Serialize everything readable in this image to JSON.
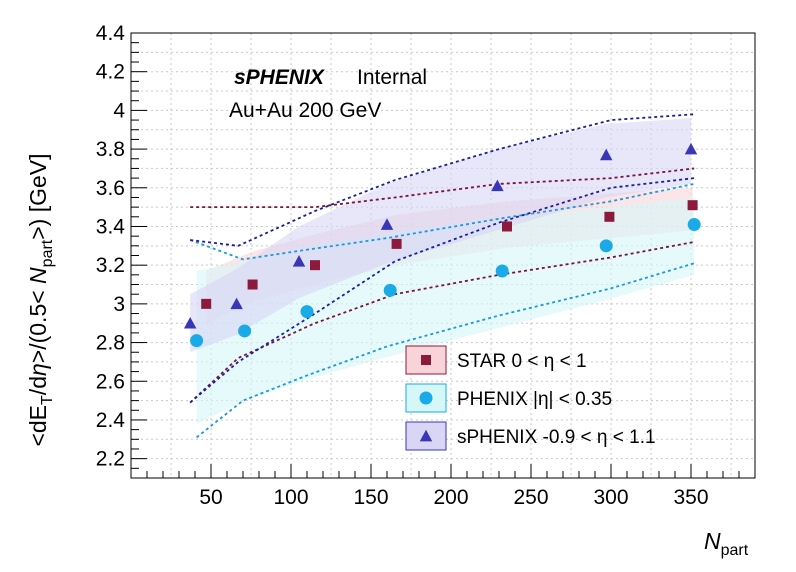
{
  "chart_data": {
    "type": "scatter",
    "title": "",
    "xlabel_main": "N",
    "xlabel_sub": "part",
    "ylabel_parts": [
      "<dE",
      "T",
      "/d",
      "η",
      ">/(0.5< ",
      "N",
      "part",
      ">) [GeV]"
    ],
    "xlim": [
      0,
      390
    ],
    "ylim": [
      2.1,
      4.4
    ],
    "x_ticks": [
      50,
      100,
      150,
      200,
      250,
      300,
      350
    ],
    "y_ticks": [
      2.2,
      2.4,
      2.6,
      2.8,
      3,
      3.2,
      3.4,
      3.6,
      3.8,
      4,
      4.2,
      4.4
    ],
    "y_tick_labels": [
      "2.2",
      "2.4",
      "2.6",
      "2.8",
      "3",
      "3.2",
      "3.4",
      "3.6",
      "3.8",
      "4",
      "4.2",
      "4.4"
    ],
    "grid": true,
    "annotations": {
      "experiment": "sPHENIX",
      "status": "Internal",
      "system": "Au+Au 200 GeV"
    },
    "legend_position": "bottom-right",
    "series": [
      {
        "name": "STAR 0 < η < 1",
        "marker": "square",
        "color": "#8b1a3c",
        "band_color": "#f8d4d8",
        "line_color": "#7a1438",
        "x": [
          47,
          76,
          115,
          166,
          235,
          299,
          351
        ],
        "y": [
          3.0,
          3.1,
          3.2,
          3.31,
          3.4,
          3.45,
          3.51
        ],
        "band_upper": [
          3.17,
          3.27,
          3.36,
          3.46,
          3.53,
          3.57,
          3.6
        ],
        "band_lower": [
          2.9,
          3.01,
          3.1,
          3.2,
          3.29,
          3.34,
          3.38
        ],
        "sys_upper_x": [
          37,
          67,
          115,
          165,
          230,
          300,
          352
        ],
        "sys_upper_y": [
          3.5,
          3.5,
          3.5,
          3.55,
          3.62,
          3.65,
          3.7
        ],
        "sys_lower_x": [
          37,
          67,
          115,
          165,
          230,
          300,
          352
        ],
        "sys_lower_y": [
          2.49,
          2.72,
          2.9,
          3.05,
          3.15,
          3.24,
          3.32
        ]
      },
      {
        "name": "PHENIX |η| < 0.35",
        "marker": "circle",
        "color": "#1aaae8",
        "band_color": "#d5f7f8",
        "line_color": "#1a9ad8",
        "x": [
          41,
          71,
          110,
          162,
          232,
          297,
          352
        ],
        "y": [
          2.81,
          2.86,
          2.96,
          3.07,
          3.17,
          3.3,
          3.41
        ],
        "band_upper": [
          3.17,
          3.22,
          3.3,
          3.38,
          3.44,
          3.5,
          3.55
        ],
        "band_lower": [
          2.38,
          2.5,
          2.61,
          2.73,
          2.88,
          3.02,
          3.15
        ],
        "sys_upper_x": [
          37,
          70,
          110,
          160,
          230,
          300,
          352
        ],
        "sys_upper_y": [
          3.33,
          3.23,
          3.28,
          3.34,
          3.44,
          3.53,
          3.62
        ],
        "sys_lower_x": [
          41,
          70,
          110,
          160,
          230,
          300,
          352
        ],
        "sys_lower_y": [
          2.31,
          2.5,
          2.63,
          2.78,
          2.94,
          3.08,
          3.21
        ]
      },
      {
        "name": "sPHENIX -0.9 < η < 1.1",
        "marker": "triangle",
        "color": "#3a36b8",
        "band_color": "#d9d6f5",
        "line_color": "#1e1e9a",
        "x": [
          37,
          66,
          105,
          160,
          229,
          297,
          350
        ],
        "y": [
          2.9,
          3.0,
          3.22,
          3.41,
          3.61,
          3.77,
          3.8
        ],
        "band_upper": [
          3.05,
          3.18,
          3.4,
          3.62,
          3.8,
          3.93,
          3.96
        ],
        "band_lower": [
          2.75,
          2.84,
          3.03,
          3.21,
          3.38,
          3.55,
          3.62
        ],
        "sys_upper_x": [
          37,
          67,
          115,
          165,
          230,
          300,
          352
        ],
        "sys_upper_y": [
          3.33,
          3.3,
          3.48,
          3.64,
          3.8,
          3.95,
          3.98
        ],
        "sys_lower_x": [
          37,
          67,
          115,
          165,
          230,
          300,
          352
        ],
        "sys_lower_y": [
          2.49,
          2.7,
          2.95,
          3.22,
          3.42,
          3.6,
          3.65
        ]
      }
    ]
  }
}
